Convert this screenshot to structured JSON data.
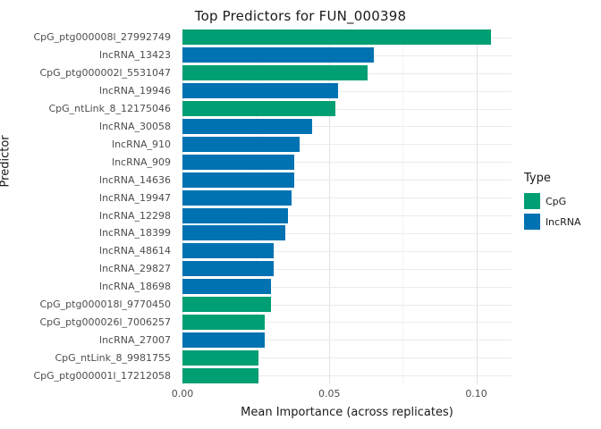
{
  "title": "Top Predictors for FUN_000398",
  "chart_data": {
    "type": "bar",
    "orientation": "horizontal",
    "title": "Top Predictors for FUN_000398",
    "xlabel": "Mean Importance (across replicates)",
    "ylabel": "Predictor",
    "xlim": [
      0,
      0.112
    ],
    "grid": true,
    "x_ticks": [
      {
        "value": 0.0,
        "label": "0.00"
      },
      {
        "value": 0.05,
        "label": "0.05"
      },
      {
        "value": 0.1,
        "label": "0.10"
      }
    ],
    "x_minor_ticks": [
      0.025,
      0.075
    ],
    "colors": {
      "CpG": "#009E73",
      "lncRNA": "#0072B2"
    },
    "legend": {
      "title": "Type",
      "position": "right",
      "entries": [
        {
          "label": "CpG",
          "color": "#009E73"
        },
        {
          "label": "lncRNA",
          "color": "#0072B2"
        }
      ]
    },
    "bars": [
      {
        "label": "CpG_ptg000008l_27992749",
        "type": "CpG",
        "value": 0.105
      },
      {
        "label": "lncRNA_13423",
        "type": "lncRNA",
        "value": 0.065
      },
      {
        "label": "CpG_ptg000002l_5531047",
        "type": "CpG",
        "value": 0.063
      },
      {
        "label": "lncRNA_19946",
        "type": "lncRNA",
        "value": 0.053
      },
      {
        "label": "CpG_ntLink_8_12175046",
        "type": "CpG",
        "value": 0.052
      },
      {
        "label": "lncRNA_30058",
        "type": "lncRNA",
        "value": 0.044
      },
      {
        "label": "lncRNA_910",
        "type": "lncRNA",
        "value": 0.04
      },
      {
        "label": "lncRNA_909",
        "type": "lncRNA",
        "value": 0.038
      },
      {
        "label": "lncRNA_14636",
        "type": "lncRNA",
        "value": 0.038
      },
      {
        "label": "lncRNA_19947",
        "type": "lncRNA",
        "value": 0.037
      },
      {
        "label": "lncRNA_12298",
        "type": "lncRNA",
        "value": 0.036
      },
      {
        "label": "lncRNA_18399",
        "type": "lncRNA",
        "value": 0.035
      },
      {
        "label": "lncRNA_48614",
        "type": "lncRNA",
        "value": 0.031
      },
      {
        "label": "lncRNA_29827",
        "type": "lncRNA",
        "value": 0.031
      },
      {
        "label": "lncRNA_18698",
        "type": "lncRNA",
        "value": 0.03
      },
      {
        "label": "CpG_ptg000018l_9770450",
        "type": "CpG",
        "value": 0.03
      },
      {
        "label": "CpG_ptg000026l_7006257",
        "type": "CpG",
        "value": 0.028
      },
      {
        "label": "lncRNA_27007",
        "type": "lncRNA",
        "value": 0.028
      },
      {
        "label": "CpG_ntLink_8_9981755",
        "type": "CpG",
        "value": 0.026
      },
      {
        "label": "CpG_ptg000001l_17212058",
        "type": "CpG",
        "value": 0.026
      }
    ]
  }
}
